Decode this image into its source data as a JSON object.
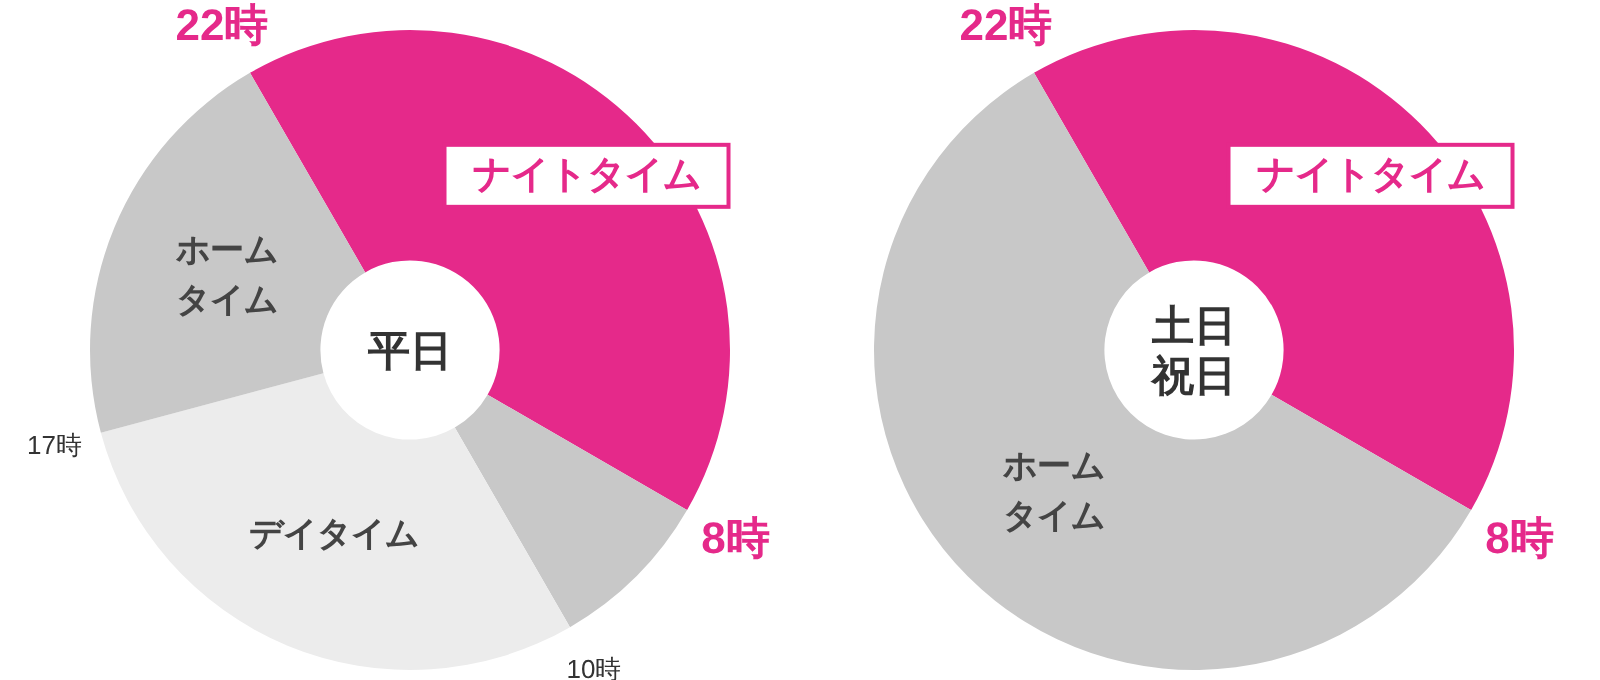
{
  "chart_data": [
    {
      "type": "donut",
      "title": "平日",
      "categories": [
        "ナイトタイム",
        null,
        "デイタイム",
        "ホームタイム"
      ],
      "values": [
        41.67,
        8.33,
        29.17,
        20.83
      ],
      "colors": [
        "#e5298a",
        "#c8c8c8",
        "#ececec",
        "#c8c8c8"
      ],
      "annotations": [
        "22時",
        "8時",
        "10時",
        "17時"
      ]
    },
    {
      "type": "donut",
      "title": "土日祝日",
      "categories": [
        "ナイトタイム",
        "ホームタイム"
      ],
      "values": [
        41.67,
        58.33
      ],
      "colors": [
        "#e5298a",
        "#c8c8c8"
      ],
      "annotations": [
        "22時",
        "8時"
      ]
    }
  ]
}
